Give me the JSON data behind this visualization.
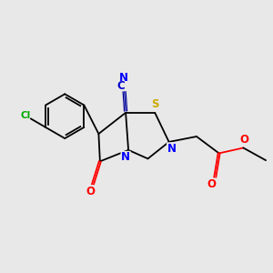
{
  "bg_color": "#e8e8e8",
  "bond_color": "#000000",
  "atom_colors": {
    "N": "#0000ff",
    "O": "#ff0000",
    "S": "#ccaa00",
    "Cl": "#00aa00",
    "CN_C": "#0000cc",
    "CN_N": "#0000ff"
  },
  "figsize": [
    3.0,
    3.0
  ],
  "dpi": 100
}
